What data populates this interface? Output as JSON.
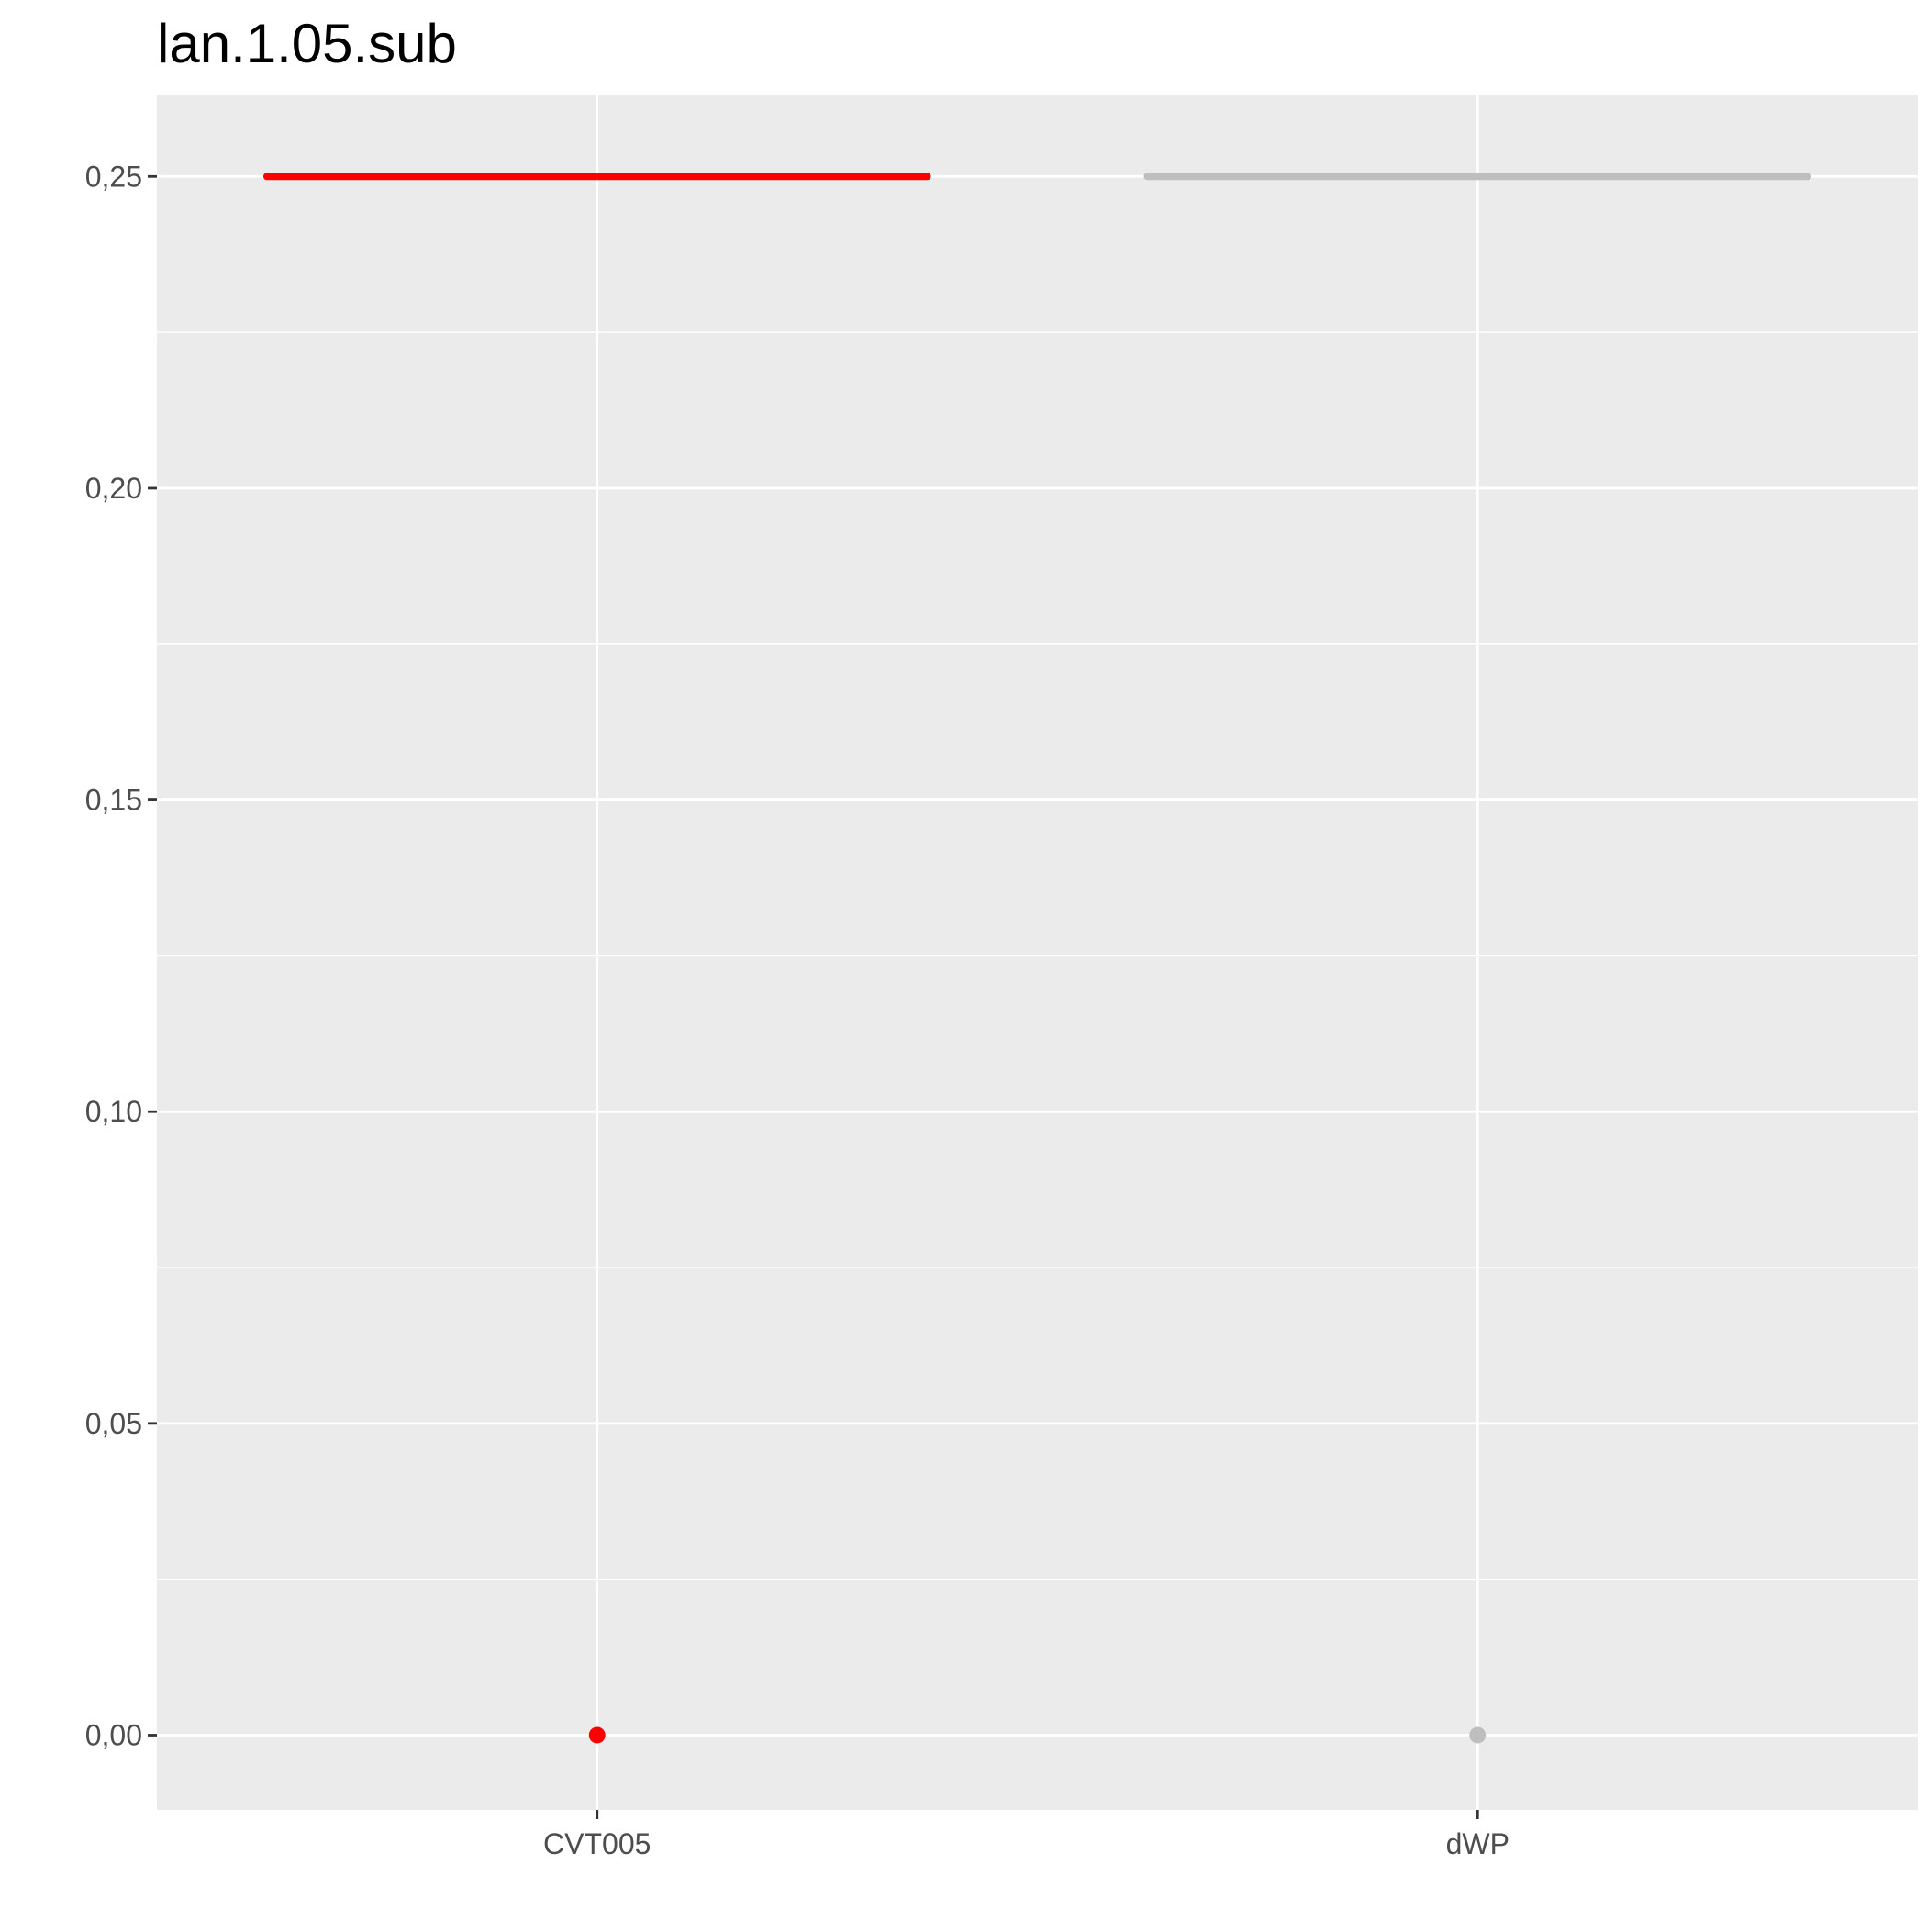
{
  "chart_data": {
    "type": "scatter",
    "title": "lan.1.05.sub",
    "xlabel": "",
    "ylabel": "",
    "categories": [
      "CVT005",
      "dWP"
    ],
    "y_ticks": [
      "0,00",
      "0,05",
      "0,10",
      "0,15",
      "0,20",
      "0,25"
    ],
    "y_tick_values": [
      0,
      0.05,
      0.1,
      0.15,
      0.2,
      0.25
    ],
    "ylim": [
      -0.012,
      0.263
    ],
    "grid": true,
    "legend": "none",
    "points": [
      {
        "category": "CVT005",
        "y": 0.0,
        "color": "#ff0000"
      },
      {
        "category": "dWP",
        "y": 0.0,
        "color": "#bebebe"
      }
    ],
    "segments": [
      {
        "category": "CVT005",
        "y": 0.25,
        "color": "#ff0000"
      },
      {
        "category": "dWP",
        "y": 0.25,
        "color": "#bebebe"
      }
    ],
    "colors": {
      "panel_background": "#ebebeb",
      "grid": "#ffffff",
      "tick_mark": "#333333",
      "tick_text": "#4d4d4d"
    }
  }
}
